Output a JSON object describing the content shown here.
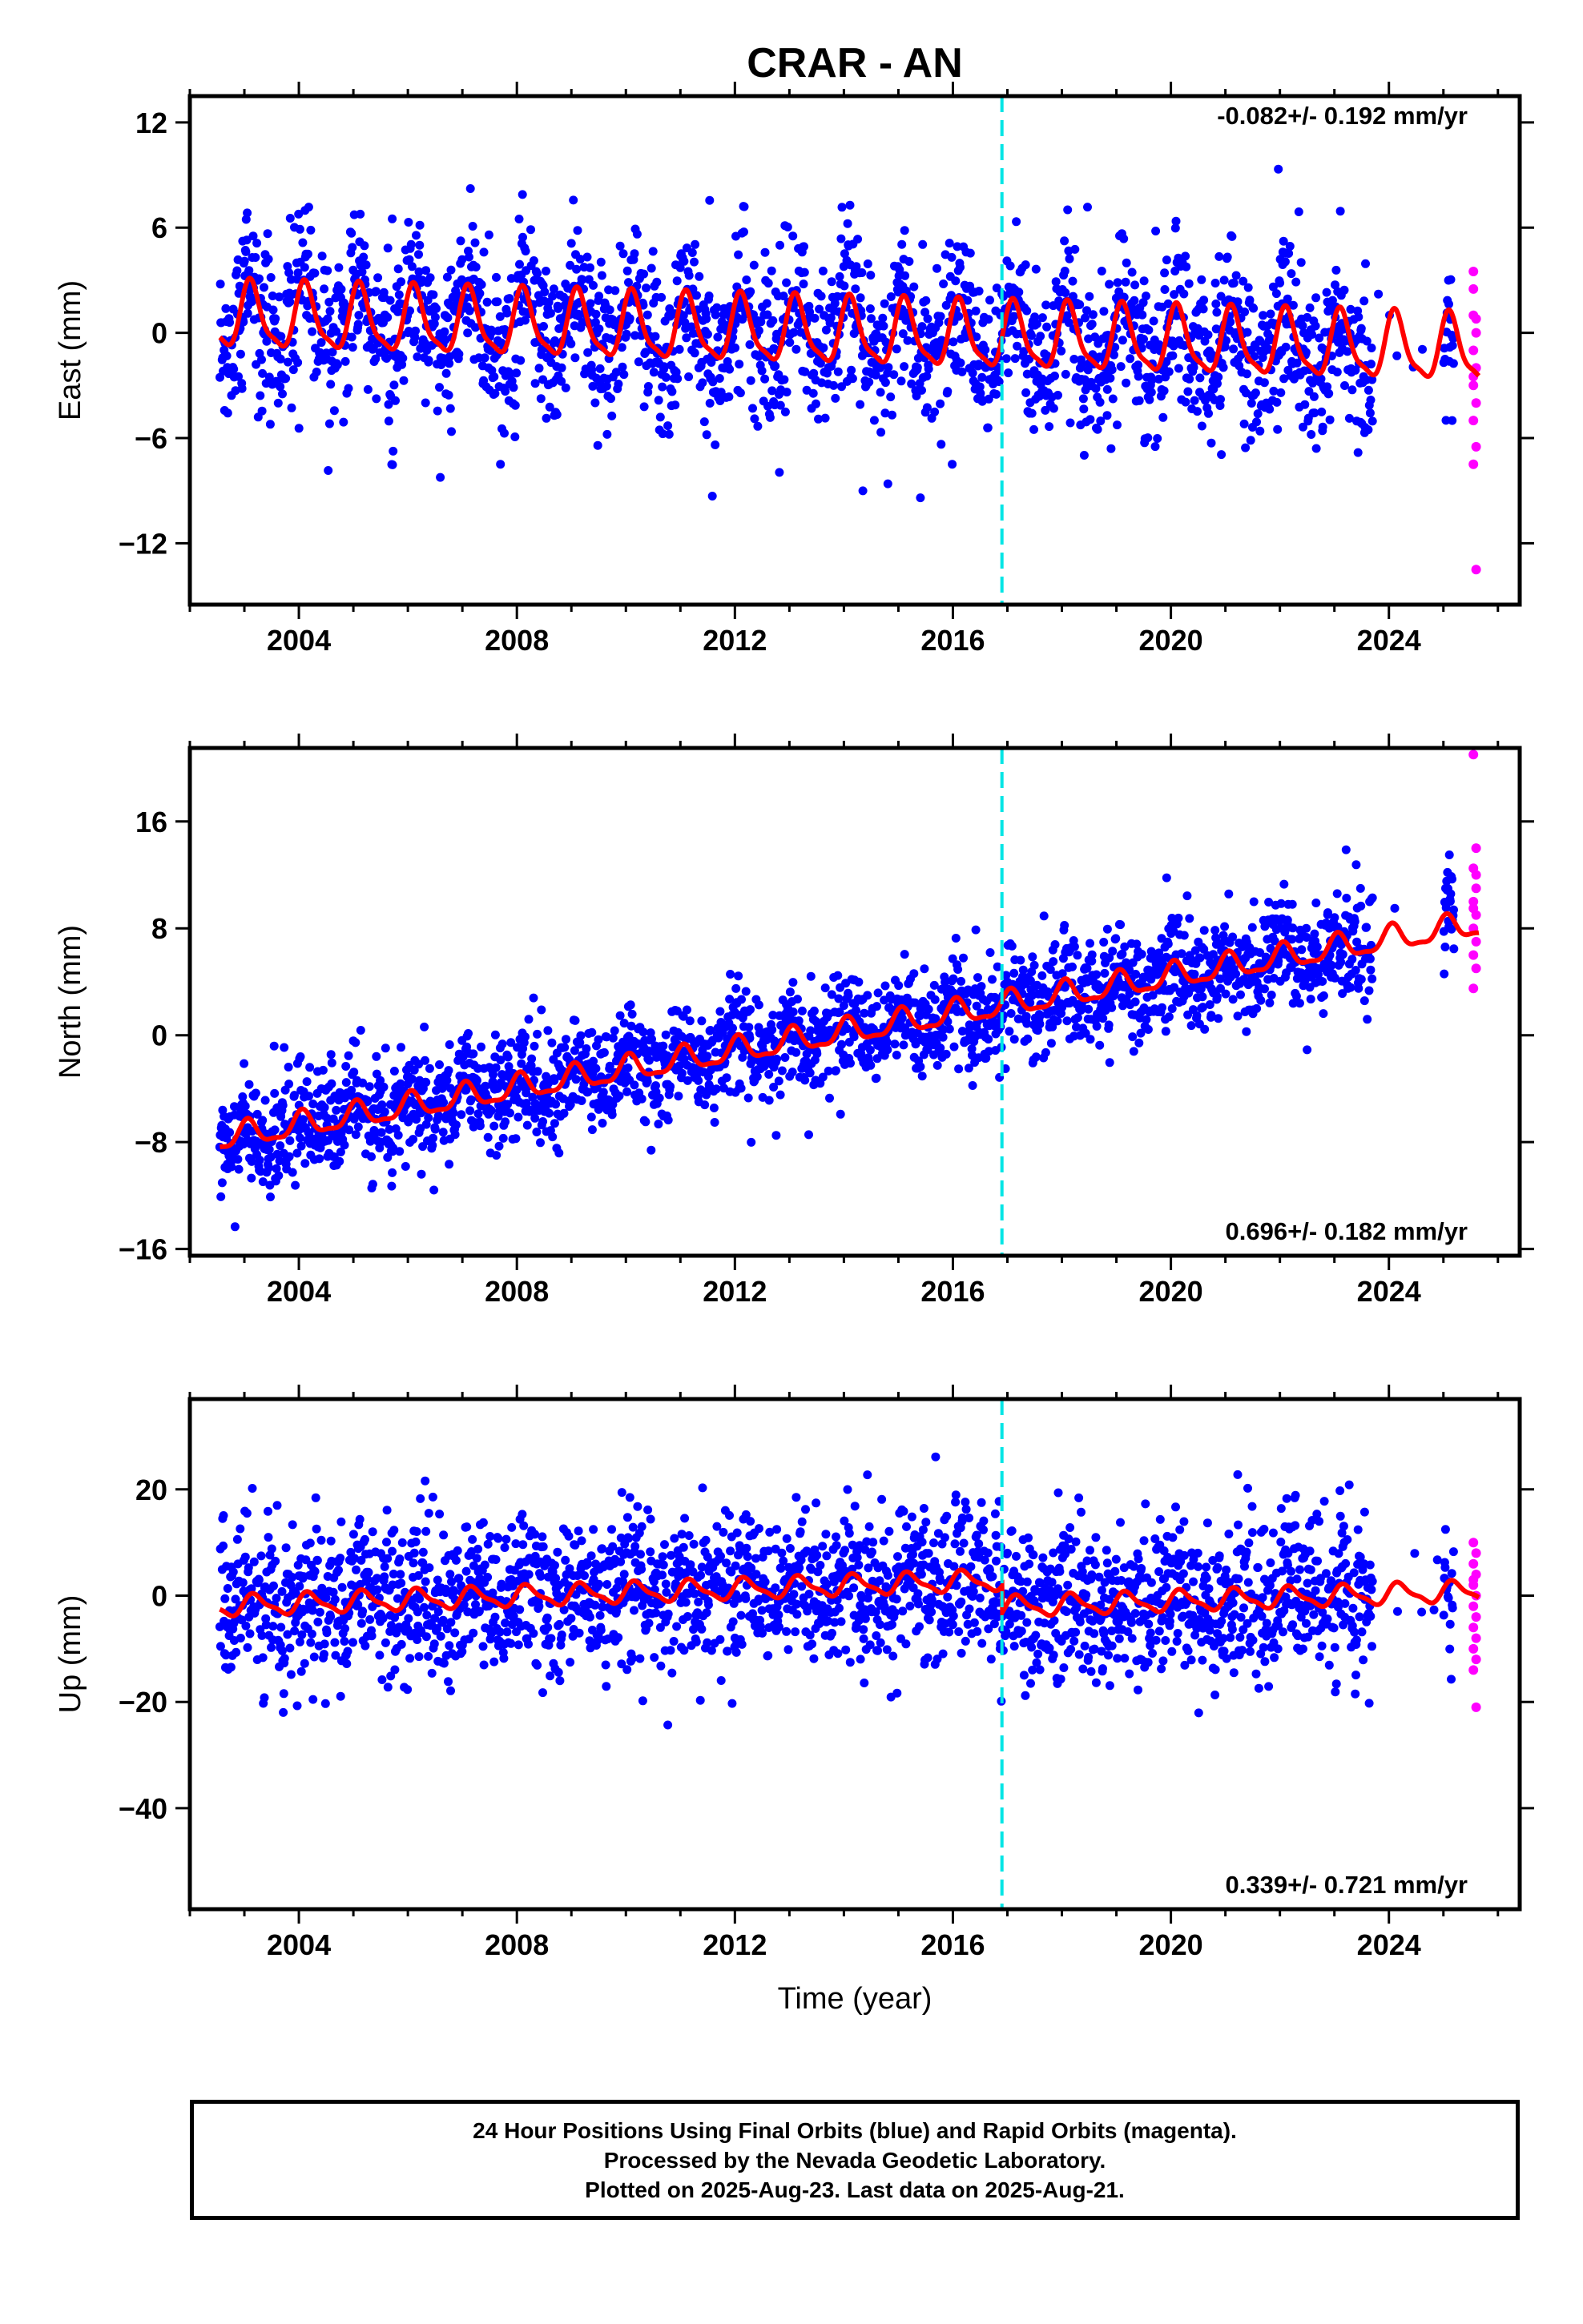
{
  "chart_data": {
    "type": "scatter",
    "title": "CRAR - AN",
    "xlabel": "Time (year)",
    "xlim": [
      2002.0,
      2026.4
    ],
    "x_ticks": [
      2004,
      2008,
      2012,
      2016,
      2020,
      2024
    ],
    "x_tick_labels": [
      "2004",
      "2008",
      "2012",
      "2016",
      "2020",
      "2024"
    ],
    "grid": false,
    "marker_year": 2016.9,
    "colors": {
      "final": "#0000ff",
      "rapid": "#ff00ff",
      "model": "#ff0000",
      "marker": "#00e5e5"
    },
    "legend": "none",
    "panels": [
      {
        "ylabel": "East (mm)",
        "ylim": [
          -15.5,
          13.5
        ],
        "y_ticks": [
          12,
          6,
          0,
          -6,
          -12
        ],
        "y_tick_labels": [
          "12",
          "6",
          "0",
          "−6",
          "−12"
        ],
        "rate_label": "-0.082+/- 0.192 mm/yr",
        "rate_position": "top-right",
        "rate": -0.082,
        "offset": 0.9,
        "step": 0.0,
        "annual_amp": 1.8,
        "annual_phase": 0.8,
        "semi_amp": 0.5,
        "noise": 2.2,
        "outlier_spread": 9,
        "range_first_year": [
          2002.55,
          2025.2
        ],
        "rapid": [
          [
            2025.55,
            3.5
          ],
          [
            2025.55,
            2.5
          ],
          [
            2025.55,
            1.0
          ],
          [
            2025.6,
            0.0
          ],
          [
            2025.55,
            -1.0
          ],
          [
            2025.6,
            -2.0
          ],
          [
            2025.55,
            -3.0
          ],
          [
            2025.6,
            -4.0
          ],
          [
            2025.55,
            -5.0
          ],
          [
            2025.6,
            -6.5
          ],
          [
            2025.55,
            -7.5
          ],
          [
            2025.6,
            -13.5
          ],
          [
            2025.6,
            0.8
          ],
          [
            2025.55,
            -2.5
          ]
        ]
      },
      {
        "ylabel": "North (mm)",
        "ylim": [
          -16.5,
          21.5
        ],
        "y_ticks": [
          16,
          8,
          0,
          -8,
          -16
        ],
        "y_tick_labels": [
          "16",
          "8",
          "0",
          "−8",
          "−16"
        ],
        "rate_label": "0.696+/- 0.182 mm/yr",
        "rate_position": "bottom-right",
        "rate": 0.696,
        "offset": -7.8,
        "step": 0.0,
        "annual_amp": 0.9,
        "annual_phase": 1.2,
        "semi_amp": 0.3,
        "noise": 1.9,
        "outlier_spread": 7,
        "range_first_year": [
          2002.55,
          2025.2
        ],
        "rapid": [
          [
            2025.55,
            21.0
          ],
          [
            2025.6,
            14.0
          ],
          [
            2025.55,
            12.5
          ],
          [
            2025.6,
            11.0
          ],
          [
            2025.55,
            10.0
          ],
          [
            2025.6,
            9.0
          ],
          [
            2025.55,
            8.0
          ],
          [
            2025.6,
            7.0
          ],
          [
            2025.55,
            6.0
          ],
          [
            2025.6,
            5.0
          ],
          [
            2025.55,
            3.5
          ],
          [
            2025.6,
            12.0
          ],
          [
            2025.55,
            9.5
          ]
        ]
      },
      {
        "ylabel": "Up (mm)",
        "ylim": [
          -59,
          37
        ],
        "y_ticks": [
          20,
          0,
          -20,
          -40
        ],
        "y_tick_labels": [
          "20",
          "0",
          "−20",
          "−40"
        ],
        "rate_label": "0.339+/- 0.721 mm/yr",
        "rate_position": "bottom-right",
        "rate": 0.339,
        "offset": -2.0,
        "step": -5.0,
        "annual_amp": 1.8,
        "annual_phase": 0.3,
        "semi_amp": 0.6,
        "noise": 7.0,
        "outlier_spread": 22,
        "range_first_year": [
          2002.55,
          2025.2
        ],
        "rapid": [
          [
            2025.55,
            10.0
          ],
          [
            2025.6,
            8.0
          ],
          [
            2025.55,
            6.0
          ],
          [
            2025.6,
            4.0
          ],
          [
            2025.55,
            2.0
          ],
          [
            2025.6,
            0.0
          ],
          [
            2025.55,
            -2.0
          ],
          [
            2025.6,
            -4.0
          ],
          [
            2025.55,
            -6.0
          ],
          [
            2025.6,
            -8.0
          ],
          [
            2025.55,
            -10.0
          ],
          [
            2025.6,
            -12.0
          ],
          [
            2025.55,
            -14.0
          ],
          [
            2025.6,
            -21.0
          ],
          [
            2025.55,
            3.0
          ]
        ]
      }
    ]
  },
  "footer": {
    "line1": "24 Hour Positions Using Final Orbits (blue) and Rapid Orbits (magenta).",
    "line2": "Processed by the Nevada Geodetic Laboratory.",
    "line3": "Plotted on 2025-Aug-23. Last data on 2025-Aug-21."
  }
}
